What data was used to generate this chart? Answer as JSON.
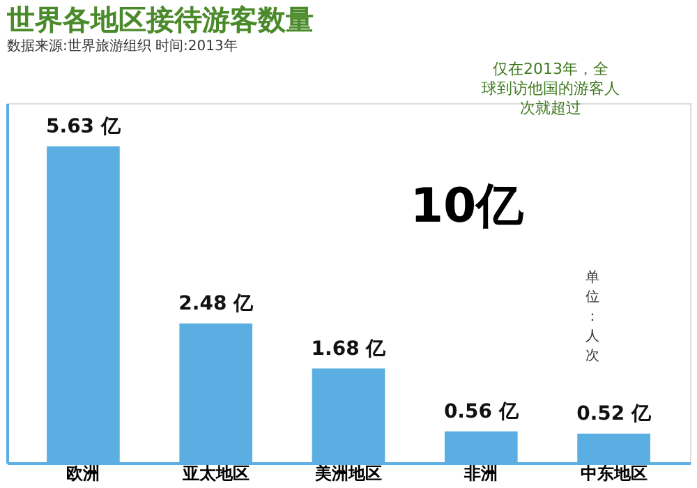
{
  "chart_data": {
    "type": "bar",
    "title": "世界各地区接待游客数量",
    "subtitle": "数据来源:世界旅游组织    时间:2013年",
    "ylabel": "单位：人次",
    "categories": [
      "欧洲",
      "亚太地区",
      "美洲地区",
      "非洲",
      "中东地区"
    ],
    "values": [
      5.63,
      2.48,
      1.68,
      0.56,
      0.52
    ],
    "value_labels": [
      "5.63 亿",
      "2.48 亿",
      "1.68 亿",
      "0.56 亿",
      "0.52 亿"
    ],
    "color": "#5aaee2",
    "ylim": [
      0,
      6.4
    ],
    "tick_labels": "x",
    "annotations": [
      "仅在2013年，全球到访他国的游客人次就超过",
      "10亿"
    ]
  }
}
